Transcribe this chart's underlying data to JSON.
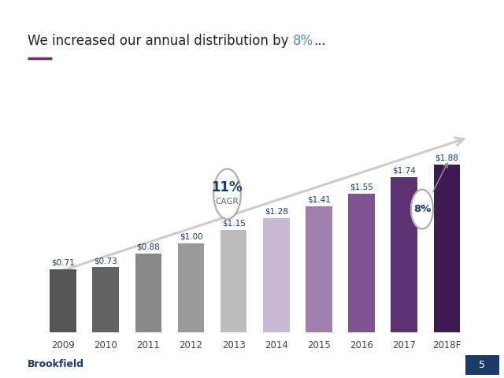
{
  "categories": [
    "2009",
    "2010",
    "2011",
    "2012",
    "2013",
    "2014",
    "2015",
    "2016",
    "2017",
    "2018F"
  ],
  "values": [
    0.71,
    0.73,
    0.88,
    1.0,
    1.15,
    1.28,
    1.41,
    1.55,
    1.74,
    1.88
  ],
  "labels": [
    "$0.71",
    "$0.73",
    "$0.88",
    "$1.00",
    "$1.15",
    "$1.28",
    "$1.41",
    "$1.55",
    "$1.74",
    "$1.88"
  ],
  "bar_colors": [
    "#555555",
    "#636363",
    "#888888",
    "#999999",
    "#bcbcbc",
    "#c9b8d4",
    "#9e7eaa",
    "#7b5490",
    "#5c3170",
    "#3d1a52"
  ],
  "title_prefix": "We increased our annual distribution by ",
  "title_highlight": "8%",
  "title_suffix": "...",
  "title_fontsize": 12,
  "bar_label_fontsize": 7.5,
  "xlabel_fontsize": 8.5,
  "background_color": "#ffffff",
  "underline_color": "#6b2d6b",
  "footer_text": "Brookfield",
  "footer_color": "#1a3a6b",
  "page_num": "5",
  "page_bg": "#1a3a6b",
  "label_color": "#1a3a6b",
  "teal_color": "#4a90a4",
  "arrow_color": "#cccccc",
  "circle_color": "#aaaaaa"
}
